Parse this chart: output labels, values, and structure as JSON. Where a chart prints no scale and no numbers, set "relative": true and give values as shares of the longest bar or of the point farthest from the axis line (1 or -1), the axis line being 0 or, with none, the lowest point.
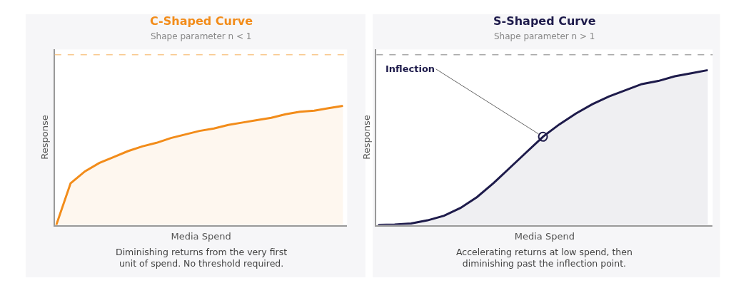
{
  "chart_data": [
    {
      "type": "area",
      "title": "C-Shaped Curve",
      "subtitle": "Shape parameter n < 1",
      "xlabel": "Media Spend",
      "ylabel": "Response",
      "relative": true,
      "marker": "none",
      "categories": [
        null,
        null,
        null,
        null,
        null,
        null,
        null,
        null,
        null,
        null,
        null,
        null,
        null,
        null,
        null,
        null,
        null,
        null,
        null,
        null,
        null
      ],
      "series": [
        {
          "color": "#f28c1a",
          "values": [
            0,
            0.35,
            0.45,
            0.52,
            0.57,
            0.62,
            0.66,
            0.69,
            0.73,
            0.76,
            0.79,
            0.81,
            0.84,
            0.86,
            0.88,
            0.9,
            0.93,
            0.95,
            0.96,
            0.98,
            1
          ]
        }
      ],
      "ref_lines": [
        {
          "axis": "y",
          "value": 1.43,
          "color": "#f9c98f",
          "line_style": "dashed"
        }
      ],
      "annotations": [
        "Diminishing returns from the very first\nunit of spend. No threshold required."
      ]
    },
    {
      "type": "area",
      "title": "S-Shaped Curve",
      "subtitle": "Shape parameter n > 1",
      "xlabel": "Media Spend",
      "ylabel": "Response",
      "relative": true,
      "marker": "none",
      "categories": [
        null,
        null,
        null,
        null,
        null,
        null,
        null,
        null,
        null,
        null,
        null,
        null,
        null,
        null,
        null,
        null,
        null,
        null,
        null,
        null,
        null
      ],
      "series": [
        {
          "color": "#1e1b4b",
          "values": [
            0,
            0.003,
            0.01,
            0.03,
            0.06,
            0.11,
            0.18,
            0.27,
            0.37,
            0.47,
            0.57,
            0.65,
            0.72,
            0.78,
            0.83,
            0.87,
            0.91,
            0.93,
            0.96,
            0.98,
            1
          ]
        }
      ],
      "ref_lines": [
        {
          "axis": "y",
          "value": 1.1,
          "color": "#aaaaaa",
          "line_style": "dashed"
        }
      ],
      "annotations": [
        "Inflection",
        "Accelerating returns at low spend, then\ndiminishing past the inflection point."
      ]
    }
  ]
}
